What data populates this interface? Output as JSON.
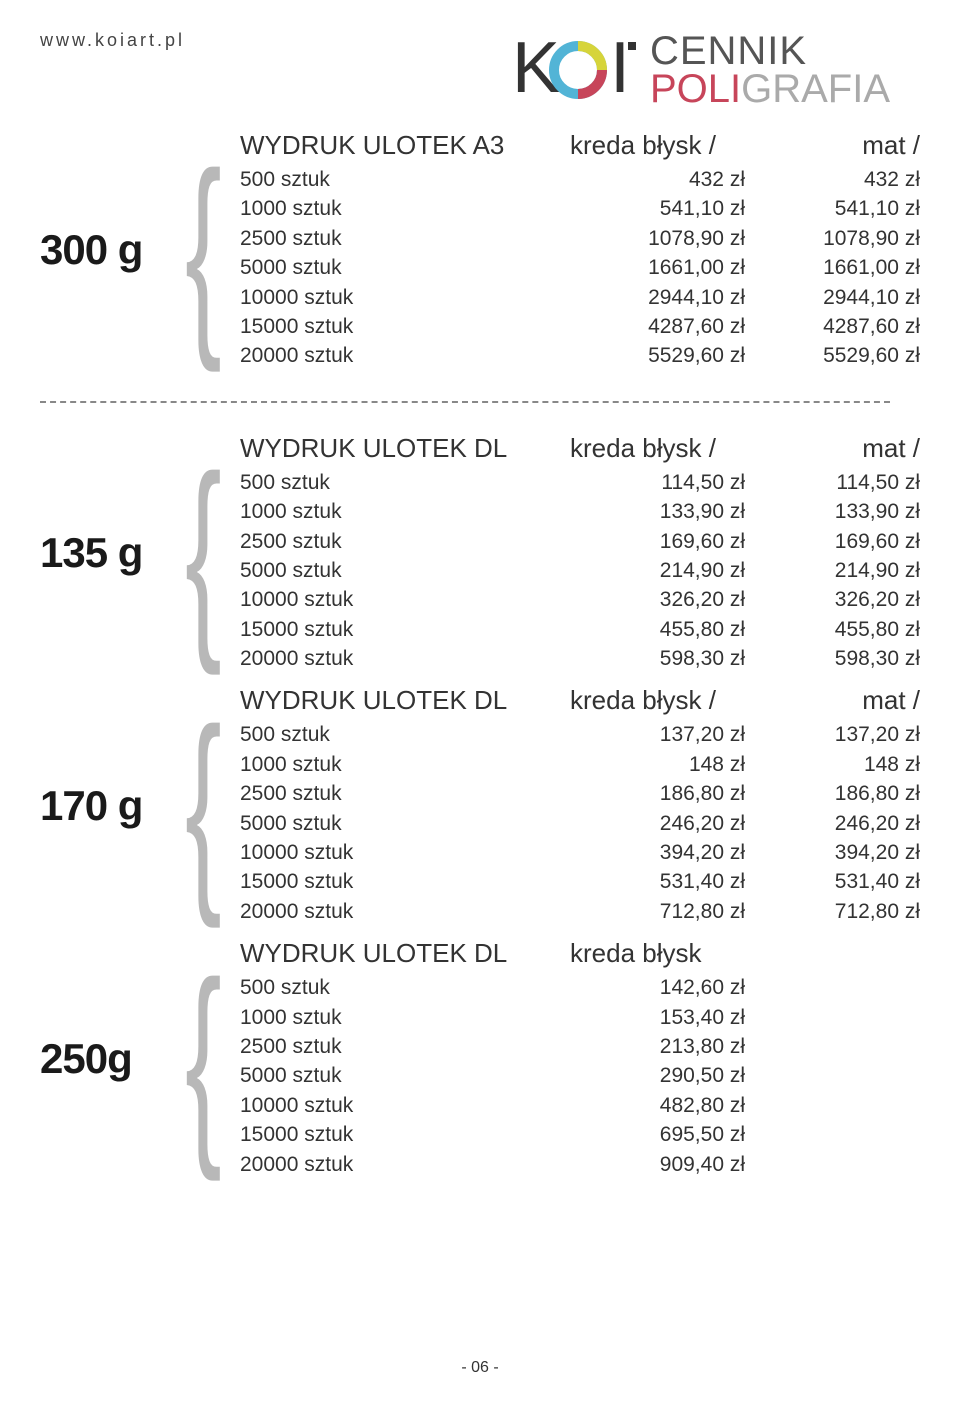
{
  "url": "www.koiart.pl",
  "logo": {
    "koi": "KOI",
    "cennik": "CENNIK",
    "poli": "POLI",
    "grafia": "GRAFIA"
  },
  "header_blysk": "kreda błysk  /",
  "header_mat": "mat   /",
  "header_blysk_only": "kreda błysk",
  "sections": {
    "s300": {
      "weight": "300 g",
      "title": "WYDRUK ULOTEK A3",
      "rows": [
        {
          "qty": "500 sztuk",
          "v1": "432 zł",
          "v2": "432 zł"
        },
        {
          "qty": "1000 sztuk",
          "v1": "541,10 zł",
          "v2": "541,10 zł"
        },
        {
          "qty": "2500 sztuk",
          "v1": "1078,90 zł",
          "v2": "1078,90 zł"
        },
        {
          "qty": "5000 sztuk",
          "v1": "1661,00 zł",
          "v2": "1661,00 zł"
        },
        {
          "qty": "10000 sztuk",
          "v1": "2944,10 zł",
          "v2": "2944,10 zł"
        },
        {
          "qty": "15000 sztuk",
          "v1": "4287,60 zł",
          "v2": "4287,60 zł"
        },
        {
          "qty": "20000 sztuk",
          "v1": "5529,60 zł",
          "v2": "5529,60 zł"
        }
      ]
    },
    "s135": {
      "weight": "135 g",
      "title": "WYDRUK ULOTEK DL",
      "rows": [
        {
          "qty": "500 sztuk",
          "v1": "114,50 zł",
          "v2": "114,50 zł"
        },
        {
          "qty": "1000 sztuk",
          "v1": "133,90 zł",
          "v2": "133,90 zł"
        },
        {
          "qty": "2500 sztuk",
          "v1": "169,60 zł",
          "v2": "169,60 zł"
        },
        {
          "qty": "5000 sztuk",
          "v1": "214,90 zł",
          "v2": "214,90 zł"
        },
        {
          "qty": "10000 sztuk",
          "v1": "326,20 zł",
          "v2": "326,20 zł"
        },
        {
          "qty": "15000 sztuk",
          "v1": "455,80 zł",
          "v2": "455,80 zł"
        },
        {
          "qty": "20000 sztuk",
          "v1": "598,30 zł",
          "v2": "598,30 zł"
        }
      ]
    },
    "s170": {
      "weight": "170 g",
      "title": "WYDRUK ULOTEK DL",
      "rows": [
        {
          "qty": "500 sztuk",
          "v1": "137,20 zł",
          "v2": "137,20 zł"
        },
        {
          "qty": "1000 sztuk",
          "v1": "148 zł",
          "v2": "148 zł"
        },
        {
          "qty": "2500 sztuk",
          "v1": "186,80 zł",
          "v2": "186,80 zł"
        },
        {
          "qty": "5000 sztuk",
          "v1": "246,20 zł",
          "v2": "246,20 zł"
        },
        {
          "qty": "10000 sztuk",
          "v1": "394,20 zł",
          "v2": "394,20 zł"
        },
        {
          "qty": "15000 sztuk",
          "v1": "531,40 zł",
          "v2": "531,40 zł"
        },
        {
          "qty": "20000 sztuk",
          "v1": "712,80 zł",
          "v2": "712,80 zł"
        }
      ]
    },
    "s250": {
      "weight": "250g",
      "title": "WYDRUK ULOTEK DL",
      "rows": [
        {
          "qty": "500 sztuk",
          "v1": "142,60 zł"
        },
        {
          "qty": "1000 sztuk",
          "v1": "153,40 zł"
        },
        {
          "qty": "2500 sztuk",
          "v1": "213,80 zł"
        },
        {
          "qty": "5000 sztuk",
          "v1": "290,50 zł"
        },
        {
          "qty": "10000 sztuk",
          "v1": "482,80 zł"
        },
        {
          "qty": "15000 sztuk",
          "v1": "695,50 zł"
        },
        {
          "qty": "20000 sztuk",
          "v1": "909,40 zł"
        }
      ]
    }
  },
  "page_number": "- 06 -"
}
